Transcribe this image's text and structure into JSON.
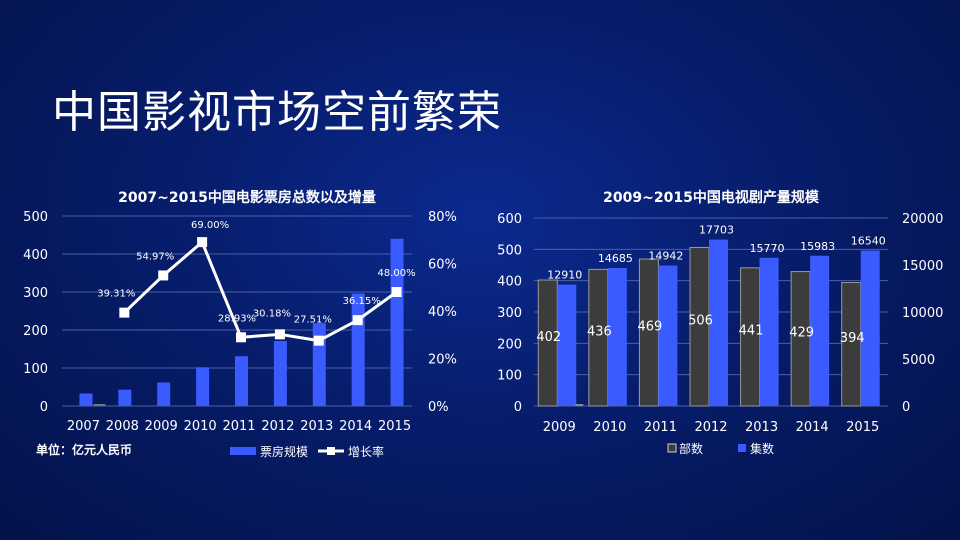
{
  "slide": {
    "title": "中国影视市场空前繁荣"
  },
  "chart_data": [
    {
      "type": "bar+line",
      "title": "2007~2015中国电影票房总数以及增量",
      "categories": [
        "2007",
        "2008",
        "2009",
        "2010",
        "2011",
        "2012",
        "2013",
        "2014",
        "2015"
      ],
      "y_ticks": [
        "0",
        "100",
        "200",
        "300",
        "400",
        "500"
      ],
      "y2_ticks": [
        "0%",
        "20%",
        "40%",
        "60%",
        "80%"
      ],
      "ylim": [
        0,
        500
      ],
      "y2lim": [
        0,
        80
      ],
      "series": [
        {
          "name": "票房规模",
          "kind": "bar",
          "color": "#3a5bff",
          "values": [
            33,
            43,
            62,
            102,
            131,
            171,
            218,
            296,
            440
          ]
        },
        {
          "name": "增长率",
          "kind": "line",
          "color": "#ffffff",
          "values": [
            null,
            39.31,
            54.97,
            69.0,
            28.93,
            30.18,
            27.51,
            36.15,
            48.0
          ],
          "labels": [
            "",
            "39.31%",
            "54.97%",
            "69.00%",
            "28.93%",
            "30.18%",
            "27.51%",
            "36.15%",
            "48.00%"
          ]
        }
      ],
      "unit_note": "单位：亿元人民币"
    },
    {
      "type": "bar",
      "title": "2009~2015中国电视剧产量规模",
      "categories": [
        "2009",
        "2010",
        "2011",
        "2012",
        "2013",
        "2014",
        "2015"
      ],
      "y_ticks": [
        "0",
        "100",
        "200",
        "300",
        "400",
        "500",
        "600"
      ],
      "y2_ticks": [
        "0",
        "5000",
        "10000",
        "15000",
        "20000"
      ],
      "ylim": [
        0,
        600
      ],
      "y2lim": [
        0,
        20000
      ],
      "series": [
        {
          "name": "部数",
          "axis": "left",
          "color": "#3c3c3c",
          "values": [
            402,
            436,
            469,
            506,
            441,
            429,
            394
          ],
          "labels": [
            "402",
            "436",
            "469",
            "506",
            "441",
            "429",
            "394"
          ]
        },
        {
          "name": "集数",
          "axis": "right",
          "color": "#3a5bff",
          "values": [
            12910,
            14685,
            14942,
            17703,
            15770,
            15983,
            16540
          ],
          "labels": [
            "12910",
            "14685",
            "14942",
            "17703",
            "15770",
            "15983",
            "16540"
          ]
        }
      ]
    }
  ]
}
